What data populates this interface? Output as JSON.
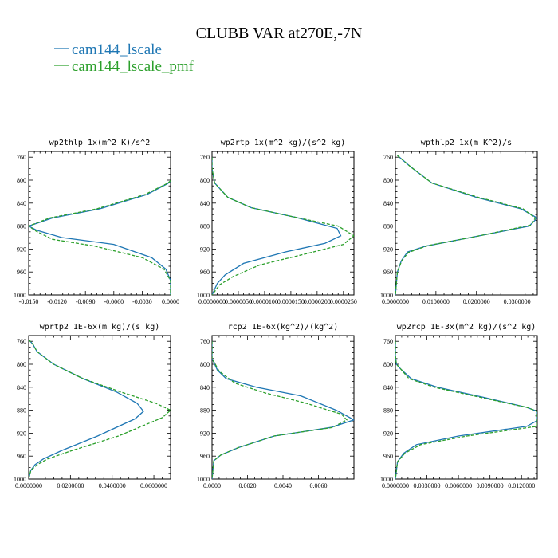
{
  "figure": {
    "title": "CLUBB VAR at270E,-7N",
    "legend": [
      {
        "name": "cam144_lscale",
        "color": "#1f77b4",
        "dash": false
      },
      {
        "name": "cam144_lscale_pmf",
        "color": "#2ca02c",
        "dash": true
      }
    ]
  },
  "chart_data": [
    {
      "type": "line",
      "title": "wp2thlp  1x(m^2 K)/s^2",
      "xlim": [
        -0.015,
        0.0
      ],
      "ylim": [
        1000,
        750
      ],
      "xticks": [
        -0.015,
        -0.012,
        -0.009,
        -0.006,
        -0.003,
        0.0
      ],
      "xticklabels": [
        "-0.0150",
        "-0.0120",
        "-0.0090",
        "-0.0060",
        "-0.0030",
        "0.0000"
      ],
      "yticks": [
        760,
        800,
        840,
        880,
        920,
        960,
        1000
      ],
      "series": [
        {
          "name": "cam144_lscale",
          "x": [
            0.0002,
            0.0002,
            0.0001,
            -0.0003,
            -0.0025,
            -0.0075,
            -0.0125,
            -0.015,
            -0.0142,
            -0.0115,
            -0.006,
            -0.002,
            -0.0005,
            0.0,
            0.0
          ],
          "y": [
            760,
            780,
            800,
            806,
            825,
            850,
            866,
            880,
            887,
            900,
            912,
            935,
            955,
            975,
            1000
          ]
        },
        {
          "name": "cam144_lscale_pmf",
          "x": [
            0.0002,
            0.0002,
            0.0001,
            -0.0004,
            -0.0027,
            -0.0078,
            -0.0128,
            -0.015,
            -0.0142,
            -0.0125,
            -0.008,
            -0.003,
            -0.0007,
            0.0,
            0.0
          ],
          "y": [
            760,
            780,
            800,
            806,
            825,
            850,
            866,
            880,
            889,
            903,
            915,
            935,
            955,
            975,
            1000
          ]
        }
      ]
    },
    {
      "type": "line",
      "title": "wp2rtp  1x(m^2 kg)/(s^2 kg)",
      "xlim": [
        0.0,
        2.7e-05
      ],
      "ylim": [
        1000,
        750
      ],
      "xticks": [
        0.0,
        5e-06,
        1e-05,
        1.5e-05,
        2e-05,
        2.5e-05
      ],
      "xticklabels": [
        "0.0000000",
        "0.0000050",
        "0.0000100",
        "0.0000150",
        "0.0000200",
        "0.0000250"
      ],
      "yticks": [
        760,
        800,
        840,
        880,
        920,
        960,
        1000
      ],
      "series": [
        {
          "name": "cam144_lscale",
          "x": [
            0.0,
            0.0,
            5e-07,
            3e-06,
            7.5e-06,
            1.6e-05,
            2.38e-05,
            2.45e-05,
            2.15e-05,
            1.4e-05,
            6e-06,
            2.5e-06,
            1e-06,
            0.0
          ],
          "y": [
            760,
            780,
            805,
            830,
            848,
            865,
            884,
            897,
            910,
            925,
            945,
            965,
            980,
            1000
          ]
        },
        {
          "name": "cam144_lscale_pmf",
          "x": [
            0.0,
            0.0,
            5e-07,
            3e-06,
            7.5e-06,
            1.6e-05,
            2.4e-05,
            2.7e-05,
            2.5e-05,
            1.8e-05,
            9e-06,
            4e-06,
            1.5e-06,
            0.0
          ],
          "y": [
            760,
            780,
            805,
            830,
            848,
            865,
            880,
            897,
            912,
            928,
            948,
            968,
            982,
            1000
          ]
        }
      ]
    },
    {
      "type": "line",
      "title": "wpthlp2  1x(m K^2)/s",
      "xlim": [
        0.0,
        0.035
      ],
      "ylim": [
        1000,
        750
      ],
      "xticks": [
        0.0,
        0.01,
        0.02,
        0.03
      ],
      "xticklabels": [
        "0.0000000",
        "0.0100000",
        "0.0200000",
        "0.0300000"
      ],
      "yticks": [
        760,
        800,
        840,
        880,
        920,
        960,
        1000
      ],
      "series": [
        {
          "name": "cam144_lscale",
          "x": [
            0.0005,
            0.0015,
            0.004,
            0.009,
            0.02,
            0.031,
            0.035,
            0.033,
            0.0185,
            0.0075,
            0.003,
            0.0015,
            0.0005,
            0.0
          ],
          "y": [
            757,
            763,
            778,
            805,
            830,
            850,
            866,
            880,
            900,
            915,
            925,
            940,
            960,
            1000
          ]
        },
        {
          "name": "cam144_lscale_pmf",
          "x": [
            0.0005,
            0.0015,
            0.004,
            0.009,
            0.0205,
            0.0315,
            0.0345,
            0.0335,
            0.02,
            0.008,
            0.0032,
            0.0016,
            0.0005,
            0.0
          ],
          "y": [
            757,
            763,
            778,
            805,
            830,
            850,
            866,
            878,
            898,
            914,
            926,
            940,
            960,
            1000
          ]
        }
      ]
    },
    {
      "type": "line",
      "title": "wprtp2  1E-6x(m kg)/(s kg)",
      "xlim": [
        0.0,
        0.068
      ],
      "ylim": [
        1000,
        750
      ],
      "xticks": [
        0.0,
        0.02,
        0.04,
        0.06
      ],
      "xticklabels": [
        "0.0000000",
        "0.0200000",
        "0.0400000",
        "0.0600000"
      ],
      "yticks": [
        760,
        800,
        840,
        880,
        920,
        960,
        1000
      ],
      "series": [
        {
          "name": "cam144_lscale",
          "x": [
            0.0,
            0.002,
            0.004,
            0.012,
            0.026,
            0.042,
            0.052,
            0.055,
            0.051,
            0.033,
            0.016,
            0.007,
            0.003,
            0.001,
            0.0
          ],
          "y": [
            757,
            765,
            778,
            800,
            825,
            848,
            868,
            882,
            895,
            925,
            950,
            965,
            975,
            985,
            1000
          ]
        },
        {
          "name": "cam144_lscale_pmf",
          "x": [
            0.0,
            0.002,
            0.004,
            0.012,
            0.026,
            0.044,
            0.061,
            0.068,
            0.064,
            0.043,
            0.021,
            0.009,
            0.004,
            0.001,
            0.0
          ],
          "y": [
            757,
            765,
            778,
            800,
            825,
            848,
            868,
            880,
            893,
            925,
            950,
            965,
            975,
            985,
            1000
          ]
        }
      ]
    },
    {
      "type": "line",
      "title": "rcp2  1E-6x(kg^2)/(kg^2)",
      "xlim": [
        0.0,
        0.008
      ],
      "ylim": [
        1000,
        750
      ],
      "xticks": [
        0.0,
        0.002,
        0.004,
        0.006
      ],
      "xticklabels": [
        "0.0000",
        "0.0020",
        "0.0040",
        "0.0060"
      ],
      "yticks": [
        760,
        800,
        840,
        880,
        920,
        960,
        1000
      ],
      "series": [
        {
          "name": "cam144_lscale",
          "x": [
            0.0,
            0.0,
            0.0003,
            0.0008,
            0.0025,
            0.005,
            0.007,
            0.008,
            0.0067,
            0.0035,
            0.0015,
            0.0005,
            0.0001,
            0.0
          ],
          "y": [
            760,
            790,
            810,
            825,
            840,
            855,
            880,
            897,
            910,
            925,
            945,
            958,
            968,
            1000
          ]
        },
        {
          "name": "cam144_lscale_pmf",
          "x": [
            0.0,
            0.0,
            0.0004,
            0.0013,
            0.003,
            0.0052,
            0.0073,
            0.0076,
            0.0068,
            0.0035,
            0.0015,
            0.0005,
            0.0001,
            0.0
          ],
          "y": [
            760,
            790,
            812,
            833,
            850,
            867,
            887,
            897,
            910,
            925,
            945,
            958,
            968,
            1000
          ]
        }
      ]
    },
    {
      "type": "line",
      "title": "wp2rcp  1E-3x(m^2 kg)/(s^2 kg)",
      "xlim": [
        0.0,
        0.0135
      ],
      "ylim": [
        1000,
        750
      ],
      "xticks": [
        0.0,
        0.003,
        0.006,
        0.009,
        0.012
      ],
      "xticklabels": [
        "0.0000000",
        "0.0030000",
        "0.0060000",
        "0.0090000",
        "0.0120000"
      ],
      "yticks": [
        760,
        800,
        840,
        880,
        920,
        960,
        1000
      ],
      "series": [
        {
          "name": "cam144_lscale",
          "x": [
            0.0,
            0.0,
            0.0001,
            0.0005,
            0.0015,
            0.004,
            0.0085,
            0.0125,
            0.0135,
            0.0135,
            0.0125,
            0.006,
            0.002,
            0.0008,
            0.0002,
            0.0
          ],
          "y": [
            760,
            785,
            800,
            808,
            825,
            840,
            858,
            875,
            882,
            898,
            908,
            925,
            940,
            955,
            970,
            1000
          ]
        },
        {
          "name": "cam144_lscale_pmf",
          "x": [
            0.0,
            0.0,
            0.0001,
            0.0005,
            0.0013,
            0.0037,
            0.0082,
            0.0125,
            0.0135,
            0.0135,
            0.0135,
            0.0068,
            0.0024,
            0.0009,
            0.0002,
            0.0
          ],
          "y": [
            760,
            785,
            800,
            808,
            825,
            840,
            858,
            875,
            882,
            898,
            908,
            925,
            940,
            955,
            970,
            1000
          ]
        }
      ]
    }
  ]
}
